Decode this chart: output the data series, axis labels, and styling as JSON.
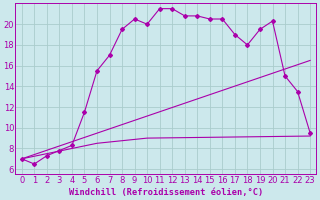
{
  "xlabel": "Windchill (Refroidissement éolien,°C)",
  "bg_color": "#cce8ec",
  "grid_color": "#aacccc",
  "line_color": "#aa00aa",
  "xlim": [
    -0.5,
    23.5
  ],
  "ylim": [
    5.5,
    22.0
  ],
  "yticks": [
    6,
    8,
    10,
    12,
    14,
    16,
    18,
    20
  ],
  "xticks": [
    0,
    1,
    2,
    3,
    4,
    5,
    6,
    7,
    8,
    9,
    10,
    11,
    12,
    13,
    14,
    15,
    16,
    17,
    18,
    19,
    20,
    21,
    22,
    23
  ],
  "series1_x": [
    0,
    1,
    2,
    3,
    4,
    5,
    6,
    7,
    8,
    9,
    10,
    11,
    12,
    13,
    14,
    15,
    16,
    17,
    18,
    19,
    20,
    21,
    22,
    23
  ],
  "series1_y": [
    7.0,
    6.5,
    7.3,
    7.8,
    8.3,
    11.5,
    15.5,
    17.0,
    19.5,
    20.5,
    20.0,
    21.5,
    21.5,
    20.8,
    20.8,
    20.5,
    20.5,
    19.0,
    18.0,
    19.5,
    20.3,
    15.0,
    13.5,
    9.5
  ],
  "series2_x": [
    0,
    23
  ],
  "series2_y": [
    7.0,
    16.5
  ],
  "series3_x": [
    0,
    6,
    10,
    23
  ],
  "series3_y": [
    7.0,
    8.5,
    9.0,
    9.2
  ],
  "tick_fontsize": 6.0,
  "xlabel_fontsize": 6.2
}
